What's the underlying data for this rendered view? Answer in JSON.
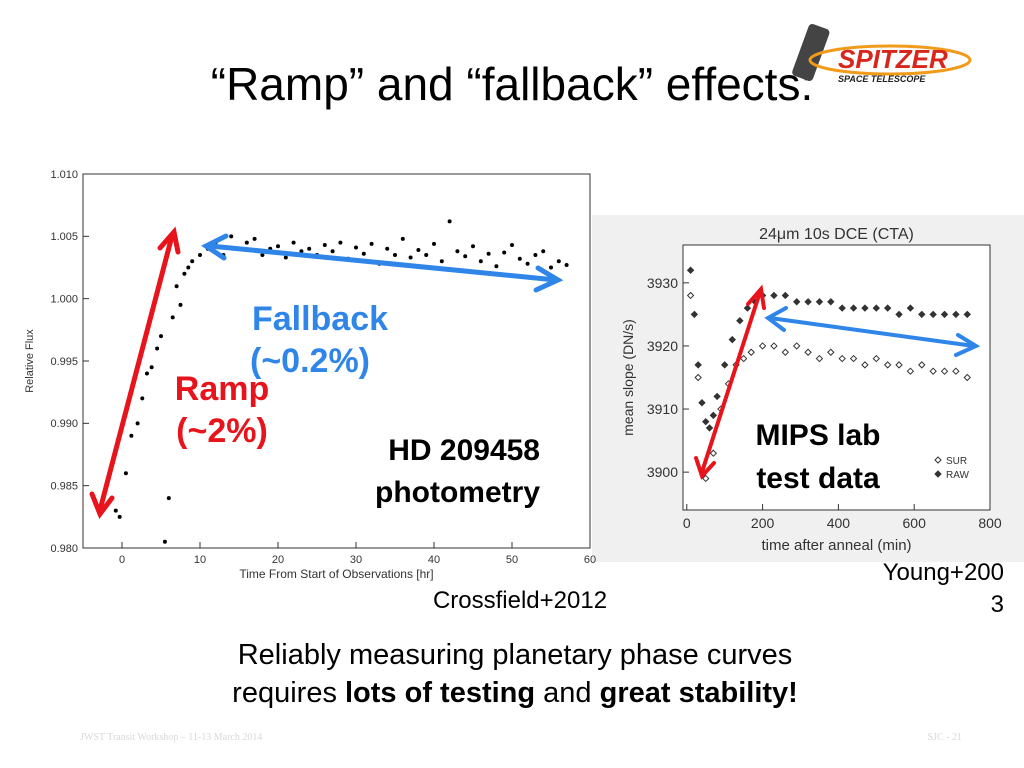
{
  "title": "“Ramp” and “fallback” effects:",
  "logo": {
    "name": "SPITZER",
    "subtitle": "SPACE TELESCOPE"
  },
  "chart_data": [
    {
      "type": "scatter",
      "xlabel": "Time From Start of Observations [hr]",
      "ylabel": "Relative Flux",
      "color": "#000000",
      "xlim": [
        -5,
        60
      ],
      "ylim": [
        0.98,
        1.01
      ],
      "xticks": [
        0,
        10,
        20,
        30,
        40,
        50,
        60
      ],
      "yticks": [
        {
          "value": 0.98,
          "label": "0.980"
        },
        0.985,
        {
          "value": 0.99,
          "label": "0.990"
        },
        0.995,
        {
          "value": 1.0,
          "label": "1.000"
        },
        1.005,
        {
          "value": 1.01,
          "label": "1.010"
        }
      ],
      "x": [
        -0.8,
        -0.3,
        0.5,
        1.2,
        2,
        2.6,
        3.2,
        3.8,
        4.5,
        5,
        5.5,
        6,
        6.5,
        7,
        7.5,
        8,
        8.5,
        9,
        10,
        11,
        12,
        13,
        14,
        15,
        16,
        17,
        18,
        19,
        20,
        21,
        22,
        23,
        24,
        25,
        26,
        27,
        28,
        29,
        30,
        31,
        32,
        33,
        34,
        35,
        36,
        37,
        38,
        39,
        40,
        41,
        42,
        43,
        44,
        45,
        46,
        47,
        48,
        49,
        50,
        51,
        52,
        53,
        54,
        55,
        56,
        57
      ],
      "values": [
        0.983,
        0.9825,
        0.986,
        0.989,
        0.99,
        0.992,
        0.994,
        0.9945,
        0.996,
        0.997,
        0.9805,
        0.984,
        0.9985,
        1.001,
        0.9995,
        1.002,
        1.0025,
        1.003,
        1.0035,
        1.004,
        1.0045,
        1.0035,
        1.005,
        1.004,
        1.0045,
        1.0048,
        1.0035,
        1.004,
        1.0042,
        1.0033,
        1.0045,
        1.0038,
        1.004,
        1.0035,
        1.0043,
        1.0038,
        1.0045,
        1.0032,
        1.0041,
        1.0036,
        1.0044,
        1.0028,
        1.004,
        1.0035,
        1.0048,
        1.0033,
        1.0039,
        1.0035,
        1.0044,
        1.003,
        1.0062,
        1.0038,
        1.0034,
        1.0042,
        1.003,
        1.0036,
        1.0026,
        1.0037,
        1.0043,
        1.0032,
        1.0028,
        1.0035,
        1.0038,
        1.0025,
        1.003,
        1.0027
      ],
      "annotations": [
        "Fallback",
        "(~0.2%)",
        "Ramp",
        "(~2%)",
        "HD 209458",
        "photometry"
      ]
    },
    {
      "type": "scatter",
      "title": "24μm 10s DCE (CTA)",
      "xlabel": "time after anneal (min)",
      "ylabel": "mean slope (DN/s)",
      "xlim": [
        -10,
        800
      ],
      "ylim": [
        3894,
        3936
      ],
      "xticks": [
        0,
        200,
        400,
        600,
        800
      ],
      "yticks": [
        3900,
        3910,
        3920,
        3930
      ],
      "series": [
        {
          "name": "SUR",
          "color": "#333333",
          "marker": "open",
          "x": [
            10,
            30,
            50,
            70,
            90,
            110,
            130,
            150,
            170,
            200,
            230,
            260,
            290,
            320,
            350,
            380,
            410,
            440,
            470,
            500,
            530,
            560,
            590,
            620,
            650,
            680,
            710,
            740
          ],
          "values": [
            3928,
            3915,
            3899,
            3903,
            3910,
            3914,
            3917,
            3918,
            3919,
            3920,
            3920,
            3919,
            3920,
            3919,
            3918,
            3919,
            3918,
            3918,
            3917,
            3918,
            3917,
            3917,
            3916,
            3917,
            3916,
            3916,
            3916,
            3915
          ]
        },
        {
          "name": "RAW",
          "color": "#333333",
          "marker": "filled",
          "x": [
            10,
            20,
            30,
            40,
            50,
            60,
            70,
            80,
            100,
            120,
            140,
            160,
            180,
            200,
            230,
            260,
            290,
            320,
            350,
            380,
            410,
            440,
            470,
            500,
            530,
            560,
            590,
            620,
            650,
            680,
            710,
            740
          ],
          "values": [
            3932,
            3925,
            3917,
            3911,
            3908,
            3907,
            3909,
            3912,
            3917,
            3921,
            3924,
            3926,
            3927,
            3928,
            3928,
            3928,
            3927,
            3927,
            3927,
            3927,
            3926,
            3926,
            3926,
            3926,
            3926,
            3925,
            3926,
            3925,
            3925,
            3925,
            3925,
            3925
          ]
        }
      ],
      "annotations": [
        "MIPS lab",
        "test data"
      ]
    }
  ],
  "citations": [
    "Crossfield+2012",
    "Young+2003"
  ],
  "body": [
    "Reliably measuring planetary phase curves",
    "requires ",
    "lots of testing",
    " and ",
    "great stability!"
  ],
  "footer": [
    "JWST Transit Workshop – 11-13 March 2014",
    "SJC - 21"
  ]
}
